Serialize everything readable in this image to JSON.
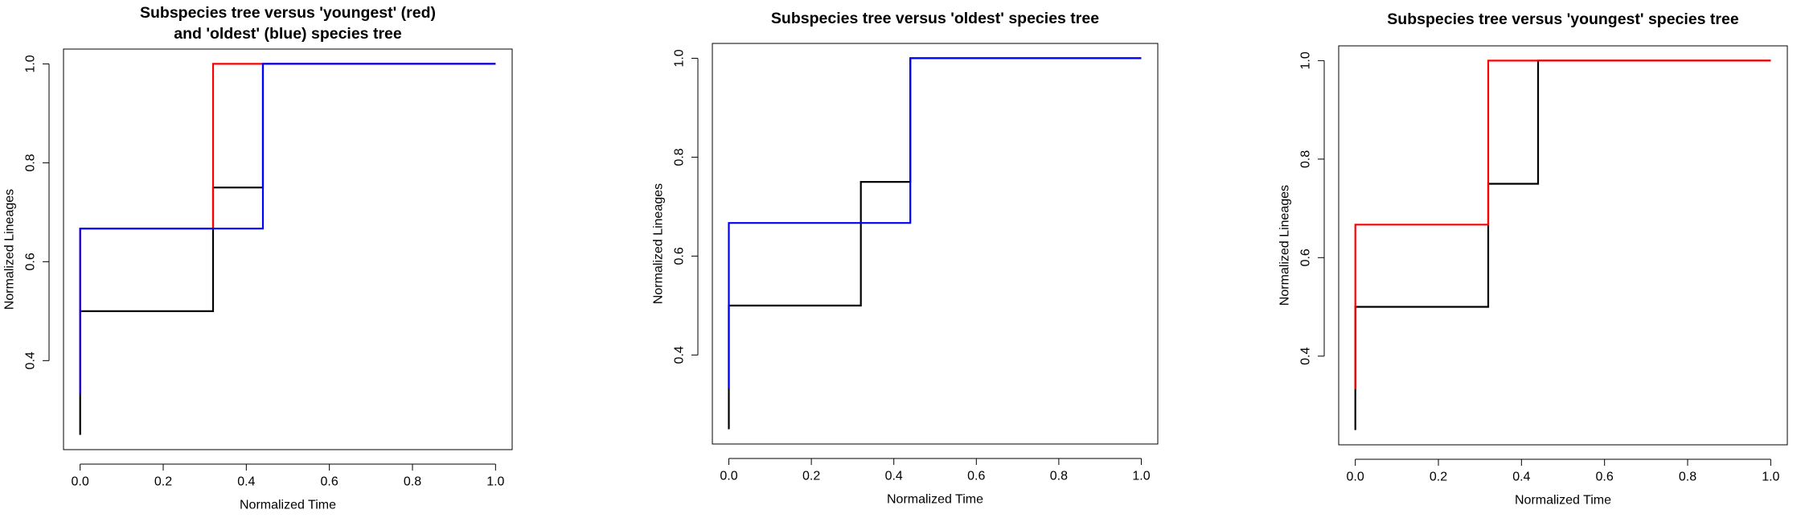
{
  "figure": {
    "background": "#ffffff"
  },
  "chart_data": [
    {
      "type": "line",
      "step": true,
      "title_lines": [
        "Subspecies tree versus 'youngest' (red)",
        "and 'oldest' (blue) species tree"
      ],
      "xlabel": "Normalized Time",
      "ylabel": "Normalized Lineages",
      "xlim": [
        -0.04,
        1.04
      ],
      "ylim": [
        0.22,
        1.03
      ],
      "xticks": [
        0.0,
        0.2,
        0.4,
        0.6,
        0.8,
        1.0
      ],
      "xtick_labels": [
        "0.0",
        "0.2",
        "0.4",
        "0.6",
        "0.8",
        "1.0"
      ],
      "yticks": [
        0.4,
        0.6,
        0.8,
        1.0
      ],
      "ytick_labels": [
        "0.4",
        "0.6",
        "0.8",
        "1.0"
      ],
      "grid": false,
      "series": [
        {
          "color": "#000000",
          "x": [
            0,
            0,
            0.32,
            0.32,
            0.44,
            0.44,
            1.0
          ],
          "y": [
            0.25,
            0.5,
            0.5,
            0.75,
            0.75,
            1.0,
            1.0
          ]
        },
        {
          "color": "#ff0000",
          "x": [
            0,
            0,
            0.32,
            0.32,
            1.0
          ],
          "y": [
            0.333,
            0.667,
            0.667,
            1.0,
            1.0
          ]
        },
        {
          "color": "#0000ff",
          "x": [
            0,
            0,
            0.44,
            0.44,
            1.0
          ],
          "y": [
            0.333,
            0.667,
            0.667,
            1.0,
            1.0
          ]
        }
      ]
    },
    {
      "type": "line",
      "step": true,
      "title_lines": [
        "Subspecies tree versus 'oldest' species tree"
      ],
      "xlabel": "Normalized Time",
      "ylabel": "Normalized Lineages",
      "xlim": [
        -0.04,
        1.04
      ],
      "ylim": [
        0.22,
        1.03
      ],
      "xticks": [
        0.0,
        0.2,
        0.4,
        0.6,
        0.8,
        1.0
      ],
      "xtick_labels": [
        "0.0",
        "0.2",
        "0.4",
        "0.6",
        "0.8",
        "1.0"
      ],
      "yticks": [
        0.4,
        0.6,
        0.8,
        1.0
      ],
      "ytick_labels": [
        "0.4",
        "0.6",
        "0.8",
        "1.0"
      ],
      "grid": false,
      "series": [
        {
          "color": "#000000",
          "x": [
            0,
            0,
            0.32,
            0.32,
            0.44,
            0.44,
            1.0
          ],
          "y": [
            0.25,
            0.5,
            0.5,
            0.75,
            0.75,
            1.0,
            1.0
          ]
        },
        {
          "color": "#0000ff",
          "x": [
            0,
            0,
            0.44,
            0.44,
            1.0
          ],
          "y": [
            0.333,
            0.667,
            0.667,
            1.0,
            1.0
          ]
        }
      ]
    },
    {
      "type": "line",
      "step": true,
      "title_lines": [
        "Subspecies tree versus 'youngest' species tree"
      ],
      "xlabel": "Normalized Time",
      "ylabel": "Normalized Lineages",
      "xlim": [
        -0.04,
        1.04
      ],
      "ylim": [
        0.22,
        1.03
      ],
      "xticks": [
        0.0,
        0.2,
        0.4,
        0.6,
        0.8,
        1.0
      ],
      "xtick_labels": [
        "0.0",
        "0.2",
        "0.4",
        "0.6",
        "0.8",
        "1.0"
      ],
      "yticks": [
        0.4,
        0.6,
        0.8,
        1.0
      ],
      "ytick_labels": [
        "0.4",
        "0.6",
        "0.8",
        "1.0"
      ],
      "grid": false,
      "series": [
        {
          "color": "#000000",
          "x": [
            0,
            0,
            0.32,
            0.32,
            0.44,
            0.44,
            1.0
          ],
          "y": [
            0.25,
            0.5,
            0.5,
            0.75,
            0.75,
            1.0,
            1.0
          ]
        },
        {
          "color": "#ff0000",
          "x": [
            0,
            0,
            0.32,
            0.32,
            1.0
          ],
          "y": [
            0.333,
            0.667,
            0.667,
            1.0,
            1.0
          ]
        }
      ]
    }
  ]
}
